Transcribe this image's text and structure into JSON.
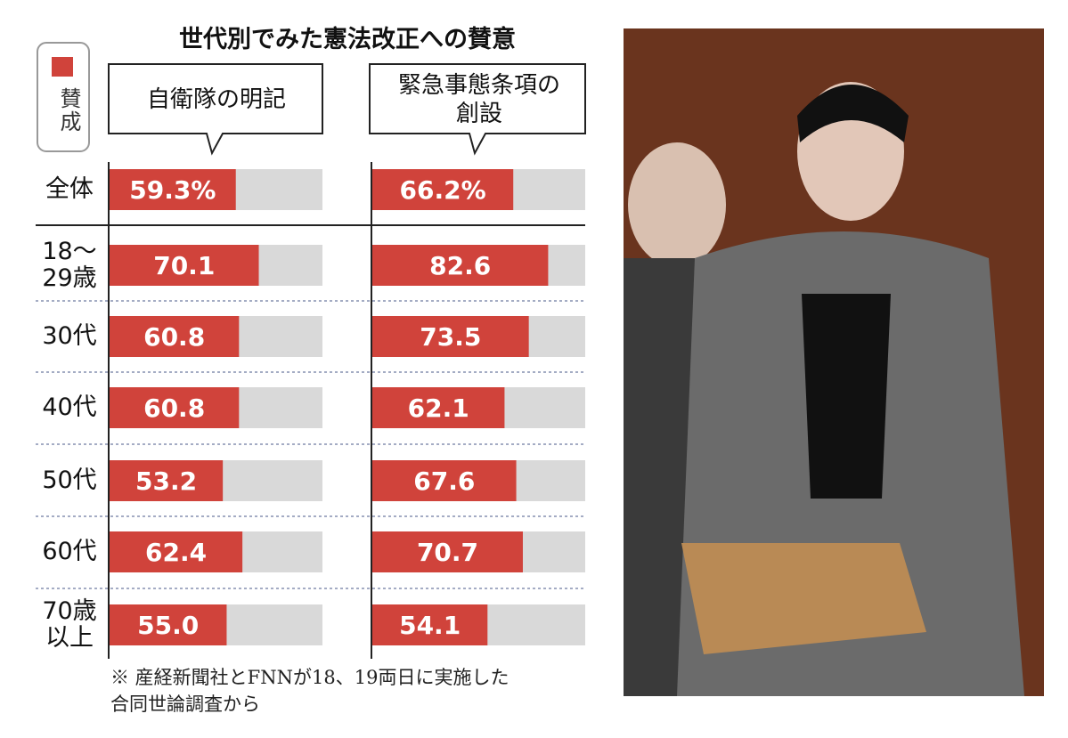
{
  "chart_data": {
    "type": "hbar",
    "title": "世代別でみた憲法改正への賛意",
    "legend_label": "賛成",
    "categories": [
      "全体",
      "18～\n29歳",
      "30代",
      "40代",
      "50代",
      "60代",
      "70歳\n以上"
    ],
    "series": [
      {
        "name": "自衛隊の明記",
        "color": "#d0433b",
        "values": [
          59.3,
          70.1,
          60.8,
          60.8,
          53.2,
          62.4,
          55.0
        ],
        "value_labels": [
          "59.3%",
          "70.1",
          "60.8",
          "60.8",
          "53.2",
          "62.4",
          "55.0"
        ]
      },
      {
        "name": "緊急事態条項の\n創設",
        "color": "#d0433b",
        "values": [
          66.2,
          82.6,
          73.5,
          62.1,
          67.6,
          70.7,
          54.1
        ],
        "value_labels": [
          "66.2%",
          "82.6",
          "73.5",
          "62.1",
          "67.6",
          "70.7",
          "54.1"
        ]
      }
    ],
    "track_color": "#d9d9d9",
    "xlim": [
      0,
      100
    ],
    "note": "※ 産経新聞社とFNNが18、19両日に実施した\n合同世論調査から"
  }
}
